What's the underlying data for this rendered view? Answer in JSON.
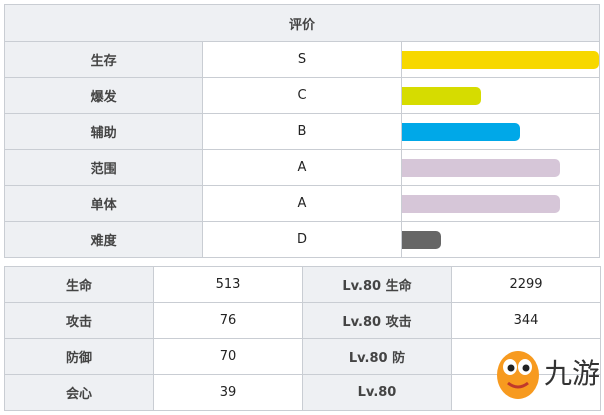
{
  "rating": {
    "header": "评价",
    "rows": [
      {
        "label": "生存",
        "grade": "S",
        "level": 1.0,
        "color": "#f7d800"
      },
      {
        "label": "爆发",
        "grade": "C",
        "level": 0.4,
        "color": "#d6dc00"
      },
      {
        "label": "辅助",
        "grade": "B",
        "level": 0.6,
        "color": "#00a8e8"
      },
      {
        "label": "范围",
        "grade": "A",
        "level": 0.8,
        "color": "#d6c6d8"
      },
      {
        "label": "单体",
        "grade": "A",
        "level": 0.8,
        "color": "#d6c6d8"
      },
      {
        "label": "难度",
        "grade": "D",
        "level": 0.2,
        "color": "#666666"
      }
    ]
  },
  "stats": {
    "rows": [
      {
        "label": "生命",
        "value": "513",
        "lv_label": "Lv.80 生命",
        "lv_value": "2299"
      },
      {
        "label": "攻击",
        "value": "76",
        "lv_label": "Lv.80 攻击",
        "lv_value": "344"
      },
      {
        "label": "防御",
        "value": "70",
        "lv_label": "Lv.80 防",
        "lv_value": ""
      },
      {
        "label": "会心",
        "value": "39",
        "lv_label": "Lv.80",
        "lv_value": ""
      }
    ]
  },
  "watermark": {
    "text": "九游"
  }
}
